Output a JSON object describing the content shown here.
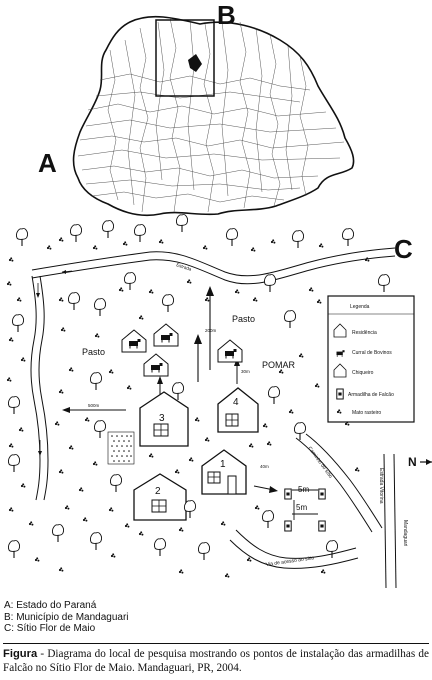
{
  "map_labels": {
    "a": "A",
    "b": "B",
    "c": "C"
  },
  "site": {
    "pasture_left": "Pasto",
    "pasture_top": "Pasto",
    "orchard": "POMAR",
    "road_top": "Estrada",
    "estrada_vitorina": "Estrada Vitorina",
    "mandaguari": "Mandaguari",
    "access_road": "Via de acesso ao sítio",
    "path": "Caminho do sítio",
    "dist_200m": "200m",
    "dist_30m_a": "30m",
    "dist_30m_b": "30m",
    "dist_500m": "500m",
    "dist_40m": "40m",
    "dist_5m_a": "5m",
    "dist_5m_b": "5m",
    "north": "N",
    "houses": [
      "1",
      "2",
      "3",
      "4"
    ]
  },
  "legend": {
    "title": "Legenda",
    "items": [
      "Residência",
      "Curral de Bovinos",
      "Chiqueiro",
      "Armadilha de Falcão",
      "Mato rasteiro"
    ]
  },
  "key": [
    "A: Estado do Paraná",
    "B: Município de Mandaguari",
    "C: Sítio Flor de Maio"
  ],
  "caption": {
    "lead": "Figura",
    "text": " - Diagrama do local de pesquisa mostrando os pontos de instalação das armadilhas de Falcão no Sítio Flor de Maio. Mandaguari, PR, 2004."
  }
}
